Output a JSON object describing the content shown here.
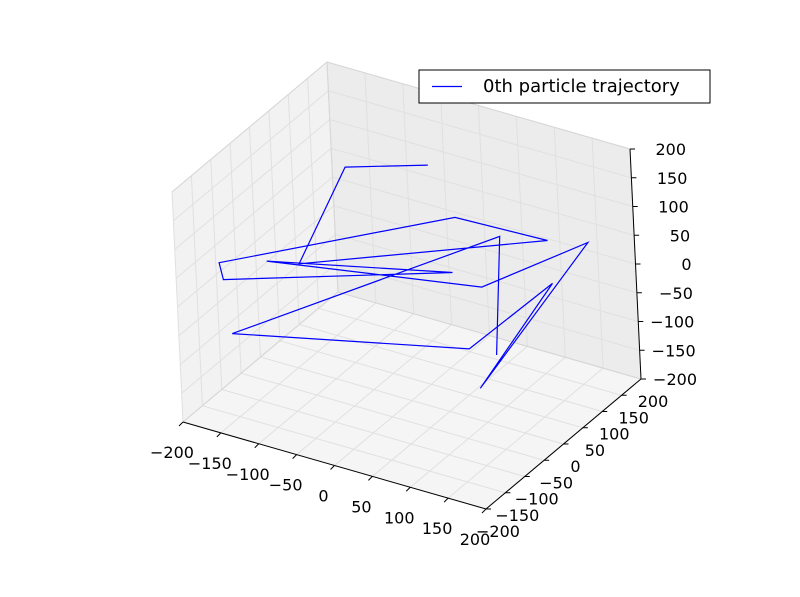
{
  "chart_data": {
    "type": "line3d",
    "title": "",
    "grid": true,
    "legend": {
      "placement": "top-right",
      "entries": [
        "0th particle trajectory"
      ]
    },
    "axes": {
      "x": {
        "lim": [
          -200,
          200
        ],
        "ticks": [
          "−200",
          "−150",
          "−100",
          "−50",
          "0",
          "50",
          "100",
          "150",
          "200"
        ]
      },
      "y": {
        "lim": [
          -200,
          200
        ],
        "ticks": [
          "−200",
          "−150",
          "−100",
          "−50",
          "0",
          "50",
          "100",
          "150",
          "200"
        ]
      },
      "z": {
        "lim": [
          -200,
          200
        ],
        "ticks": [
          "−200",
          "−150",
          "−100",
          "−50",
          "0",
          "50",
          "100",
          "150",
          "200"
        ]
      }
    },
    "series": [
      {
        "name": "0th particle trajectory",
        "color": "#0000ff",
        "points": [
          [
            20,
            30,
            200
          ],
          [
            -80,
            10,
            170
          ],
          [
            -110,
            -60,
            30
          ],
          [
            170,
            40,
            120
          ],
          [
            80,
            -20,
            160
          ],
          [
            -190,
            -110,
            30
          ],
          [
            -180,
            -120,
            10
          ],
          [
            30,
            60,
            0
          ],
          [
            -110,
            -140,
            80
          ],
          [
            160,
            -110,
            120
          ],
          [
            170,
            140,
            60
          ],
          [
            130,
            -70,
            -90
          ],
          [
            120,
            140,
            -30
          ],
          [
            80,
            0,
            -80
          ],
          [
            -150,
            -160,
            -50
          ],
          [
            20,
            200,
            -20
          ],
          [
            100,
            30,
            -100
          ]
        ]
      }
    ]
  }
}
